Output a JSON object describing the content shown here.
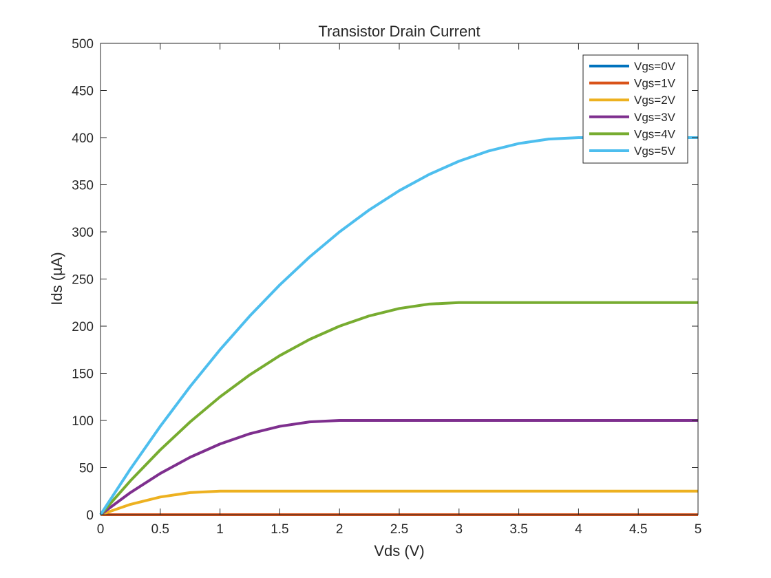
{
  "chart_data": {
    "type": "line",
    "title": "Transistor Drain Current",
    "xlabel": "Vds (V)",
    "ylabel": "Ids (µA)",
    "xlim": [
      0,
      5
    ],
    "ylim": [
      0,
      500
    ],
    "xticks": [
      0,
      0.5,
      1,
      1.5,
      2,
      2.5,
      3,
      3.5,
      4,
      4.5,
      5
    ],
    "xtick_labels": [
      "0",
      "0.5",
      "1",
      "1.5",
      "2",
      "2.5",
      "3",
      "3.5",
      "4",
      "4.5",
      "5"
    ],
    "yticks": [
      0,
      50,
      100,
      150,
      200,
      250,
      300,
      350,
      400,
      450,
      500
    ],
    "ytick_labels": [
      "0",
      "50",
      "100",
      "150",
      "200",
      "250",
      "300",
      "350",
      "400",
      "450",
      "500"
    ],
    "grid": false,
    "legend_position": "top-right",
    "x": [
      0,
      0.25,
      0.5,
      0.75,
      1,
      1.25,
      1.5,
      1.75,
      2,
      2.25,
      2.5,
      2.75,
      3,
      3.25,
      3.5,
      3.75,
      4,
      4.25,
      4.5,
      4.75,
      5
    ],
    "series": [
      {
        "name": "Vgs=0V",
        "color": "#0072BD",
        "values": [
          0,
          0,
          0,
          0,
          0,
          0,
          0,
          0,
          0,
          0,
          0,
          0,
          0,
          0,
          0,
          0,
          0,
          0,
          0,
          0,
          0
        ]
      },
      {
        "name": "Vgs=1V",
        "color": "#D95319",
        "values": [
          0,
          0,
          0,
          0,
          0,
          0,
          0,
          0,
          0,
          0,
          0,
          0,
          0,
          0,
          0,
          0,
          0,
          0,
          0,
          0,
          0
        ]
      },
      {
        "name": "Vgs=2V",
        "color": "#EDB120",
        "values": [
          0,
          10.94,
          18.75,
          23.44,
          25,
          25,
          25,
          25,
          25,
          25,
          25,
          25,
          25,
          25,
          25,
          25,
          25,
          25,
          25,
          25,
          25
        ]
      },
      {
        "name": "Vgs=3V",
        "color": "#7E2F8E",
        "values": [
          0,
          23.44,
          43.75,
          60.94,
          75,
          85.94,
          93.75,
          98.44,
          100,
          100,
          100,
          100,
          100,
          100,
          100,
          100,
          100,
          100,
          100,
          100,
          100
        ]
      },
      {
        "name": "Vgs=4V",
        "color": "#77AC30",
        "values": [
          0,
          35.94,
          68.75,
          98.44,
          125,
          148.44,
          168.75,
          185.94,
          200,
          210.94,
          218.75,
          223.44,
          225,
          225,
          225,
          225,
          225,
          225,
          225,
          225,
          225
        ]
      },
      {
        "name": "Vgs=5V",
        "color": "#4DBEEE",
        "values": [
          0,
          48.44,
          93.75,
          135.94,
          175,
          210.94,
          243.75,
          273.44,
          300,
          323.44,
          343.75,
          360.94,
          375,
          385.94,
          393.75,
          398.44,
          400,
          400,
          400,
          400,
          400
        ]
      }
    ]
  }
}
